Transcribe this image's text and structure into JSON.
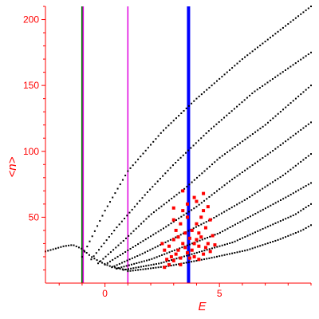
{
  "chart_data": {
    "type": "scatter",
    "title": "",
    "xlabel": "E",
    "ylabel": "<n>",
    "xlim": [
      -2.6,
      9.0
    ],
    "ylim": [
      0,
      210
    ],
    "grid": false,
    "legend": "none",
    "x_ticks": [
      0,
      5
    ],
    "y_ticks": [
      50,
      100,
      150,
      200
    ],
    "x_tick_labels": [
      "0",
      "5"
    ],
    "y_tick_labels": [
      "50",
      "100",
      "150",
      "200"
    ],
    "colors": {
      "axis": "#ff0000",
      "points": "#000000",
      "highlight_points": "#ff0000",
      "green_line": "#007a00",
      "magenta_line": "#e000e0",
      "blue_line": "#0000ff"
    },
    "vertical_lines": [
      {
        "x": -1.0,
        "color": "#007a00",
        "width": 2
      },
      {
        "x": -0.95,
        "color": "#e000e0",
        "width": 1.5
      },
      {
        "x": 1.0,
        "color": "#e000e0",
        "width": 1.5
      },
      {
        "x": 3.65,
        "color": "#0000ff",
        "width": 4
      }
    ],
    "black_curves": [
      {
        "x": [
          -1.0,
          0.0,
          1.0,
          2.5,
          4.0,
          6.0,
          9.0
        ],
        "y": [
          20,
          55,
          85,
          115,
          140,
          170,
          210
        ]
      },
      {
        "x": [
          -0.6,
          0.5,
          1.8,
          3.0,
          4.5,
          6.5,
          9.0
        ],
        "y": [
          18,
          42,
          68,
          90,
          115,
          145,
          175
        ]
      },
      {
        "x": [
          -0.3,
          0.8,
          2.0,
          3.5,
          5.0,
          7.0,
          9.0
        ],
        "y": [
          15,
          32,
          52,
          72,
          95,
          120,
          150
        ]
      },
      {
        "x": [
          0.0,
          1.2,
          2.6,
          4.0,
          5.5,
          7.3,
          9.0
        ],
        "y": [
          14,
          27,
          42,
          58,
          78,
          100,
          122
        ]
      },
      {
        "x": [
          0.3,
          1.6,
          3.0,
          4.6,
          6.2,
          7.8,
          9.0
        ],
        "y": [
          12,
          22,
          34,
          48,
          64,
          82,
          98
        ]
      },
      {
        "x": [
          0.5,
          2.0,
          3.5,
          5.0,
          6.5,
          8.0,
          9.0
        ],
        "y": [
          11,
          18,
          28,
          38,
          52,
          66,
          76
        ]
      },
      {
        "x": [
          0.8,
          2.4,
          4.0,
          5.6,
          7.0,
          8.3,
          9.0
        ],
        "y": [
          10,
          15,
          23,
          31,
          42,
          52,
          60
        ]
      },
      {
        "x": [
          1.0,
          2.8,
          4.6,
          6.2,
          7.6,
          8.6,
          9.0
        ],
        "y": [
          9,
          13,
          19,
          25,
          33,
          40,
          44
        ]
      },
      {
        "x": [
          -2.6,
          -2.2,
          -1.8,
          -1.4,
          -1.0,
          -0.6,
          -0.2,
          0.2,
          0.6,
          1.0
        ],
        "y": [
          24,
          26,
          28,
          29,
          26,
          20,
          16,
          13,
          11,
          10
        ]
      }
    ],
    "red_points": [
      [
        2.7,
        18
      ],
      [
        2.9,
        20
      ],
      [
        3.0,
        17
      ],
      [
        3.1,
        22
      ],
      [
        3.2,
        25
      ],
      [
        3.3,
        19
      ],
      [
        3.4,
        30
      ],
      [
        2.8,
        28
      ],
      [
        3.0,
        33
      ],
      [
        3.2,
        35
      ],
      [
        3.5,
        27
      ],
      [
        3.5,
        38
      ],
      [
        3.3,
        45
      ],
      [
        3.6,
        50
      ],
      [
        3.1,
        40
      ],
      [
        3.4,
        55
      ],
      [
        3.6,
        60
      ],
      [
        3.0,
        48
      ],
      [
        3.8,
        25
      ],
      [
        3.9,
        30
      ],
      [
        4.0,
        33
      ],
      [
        4.1,
        28
      ],
      [
        4.2,
        35
      ],
      [
        4.3,
        22
      ],
      [
        4.4,
        27
      ],
      [
        4.5,
        30
      ],
      [
        4.6,
        24
      ],
      [
        3.8,
        40
      ],
      [
        4.0,
        45
      ],
      [
        4.2,
        50
      ],
      [
        4.3,
        55
      ],
      [
        4.0,
        62
      ],
      [
        4.4,
        42
      ],
      [
        3.9,
        20
      ],
      [
        4.7,
        36
      ],
      [
        4.8,
        29
      ],
      [
        2.6,
        12
      ],
      [
        2.8,
        14
      ],
      [
        3.6,
        23
      ],
      [
        4.1,
        18
      ],
      [
        3.7,
        34
      ],
      [
        4.5,
        58
      ],
      [
        3.4,
        70
      ],
      [
        3.9,
        65
      ],
      [
        2.5,
        30
      ],
      [
        2.6,
        25
      ],
      [
        3.0,
        57
      ],
      [
        4.1,
        38
      ],
      [
        3.3,
        14
      ],
      [
        4.6,
        48
      ],
      [
        3.7,
        19
      ],
      [
        4.3,
        68
      ]
    ]
  }
}
